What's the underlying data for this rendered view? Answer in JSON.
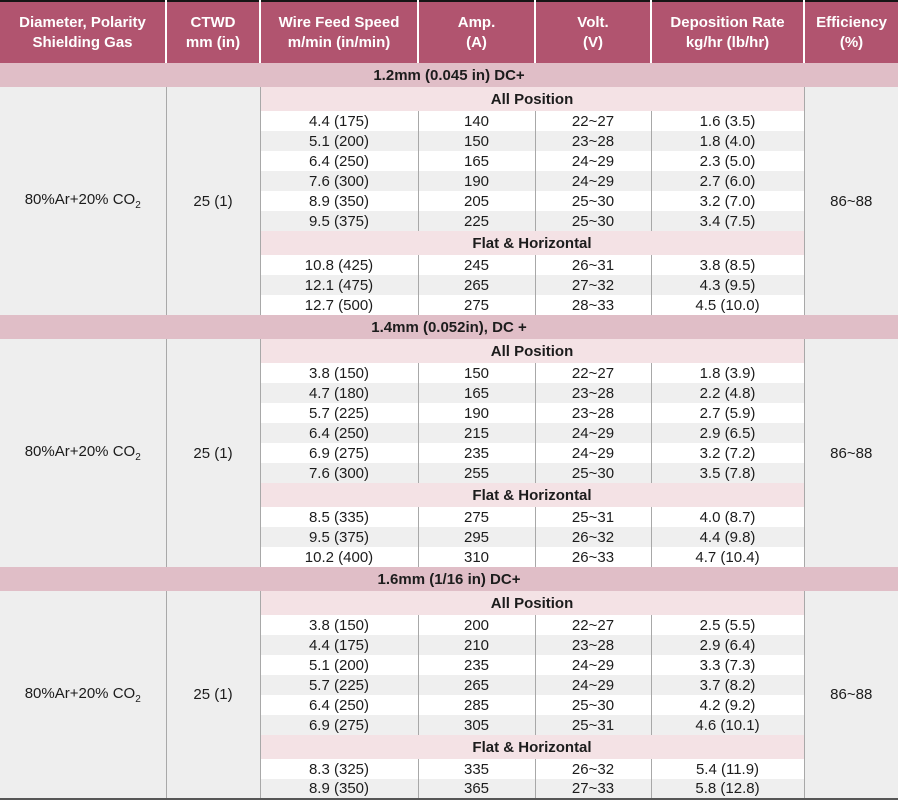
{
  "colors": {
    "header_bg": "#b1546f",
    "section_band": "#e0bec7",
    "group_band": "#f4e2e5",
    "row_stripe": "#efefef",
    "outer_column_bg": "#eeeeee",
    "grid_line": "#a8a8a8",
    "header_text": "#ffffff",
    "body_text": "#1c1c1c"
  },
  "table": {
    "headers": [
      {
        "line1": "Diameter, Polarity",
        "line2": "Shielding Gas"
      },
      {
        "line1": "CTWD",
        "line2": "mm (in)"
      },
      {
        "line1": "Wire Feed Speed",
        "line2": "m/min (in/min)"
      },
      {
        "line1": "Amp.",
        "line2": "(A)"
      },
      {
        "line1": "Volt.",
        "line2": "(V)"
      },
      {
        "line1": "Deposition Rate",
        "line2": "kg/hr (lb/hr)"
      },
      {
        "line1": "Efficiency",
        "line2": "(%)"
      }
    ],
    "sections": [
      {
        "title": "1.2mm (0.045 in) DC+",
        "shielding_gas": "80%Ar+20% CO",
        "shielding_gas_subscript": "2",
        "ctwd": "25 (1)",
        "efficiency": "86~88",
        "groups": [
          {
            "label": "All Position",
            "rows": [
              [
                "4.4 (175)",
                "140",
                "22~27",
                "1.6 (3.5)"
              ],
              [
                "5.1 (200)",
                "150",
                "23~28",
                "1.8 (4.0)"
              ],
              [
                "6.4 (250)",
                "165",
                "24~29",
                "2.3 (5.0)"
              ],
              [
                "7.6 (300)",
                "190",
                "24~29",
                "2.7 (6.0)"
              ],
              [
                "8.9 (350)",
                "205",
                "25~30",
                "3.2 (7.0)"
              ],
              [
                "9.5 (375)",
                "225",
                "25~30",
                "3.4 (7.5)"
              ]
            ]
          },
          {
            "label": "Flat & Horizontal",
            "rows": [
              [
                "10.8 (425)",
                "245",
                "26~31",
                "3.8 (8.5)"
              ],
              [
                "12.1 (475)",
                "265",
                "27~32",
                "4.3 (9.5)"
              ],
              [
                "12.7 (500)",
                "275",
                "28~33",
                "4.5 (10.0)"
              ]
            ]
          }
        ]
      },
      {
        "title": "1.4mm (0.052in), DC +",
        "shielding_gas": "80%Ar+20% CO",
        "shielding_gas_subscript": "2",
        "ctwd": "25 (1)",
        "efficiency": "86~88",
        "groups": [
          {
            "label": "All Position",
            "rows": [
              [
                "3.8 (150)",
                "150",
                "22~27",
                "1.8 (3.9)"
              ],
              [
                "4.7 (180)",
                "165",
                "23~28",
                "2.2 (4.8)"
              ],
              [
                "5.7 (225)",
                "190",
                "23~28",
                "2.7 (5.9)"
              ],
              [
                "6.4 (250)",
                "215",
                "24~29",
                "2.9 (6.5)"
              ],
              [
                "6.9 (275)",
                "235",
                "24~29",
                "3.2 (7.2)"
              ],
              [
                "7.6 (300)",
                "255",
                "25~30",
                "3.5 (7.8)"
              ]
            ]
          },
          {
            "label": "Flat & Horizontal",
            "rows": [
              [
                "8.5 (335)",
                "275",
                "25~31",
                "4.0 (8.7)"
              ],
              [
                "9.5 (375)",
                "295",
                "26~32",
                "4.4 (9.8)"
              ],
              [
                "10.2 (400)",
                "310",
                "26~33",
                "4.7 (10.4)"
              ]
            ]
          }
        ]
      },
      {
        "title": "1.6mm (1/16 in) DC+",
        "shielding_gas": "80%Ar+20% CO",
        "shielding_gas_subscript": "2",
        "ctwd": "25 (1)",
        "efficiency": "86~88",
        "groups": [
          {
            "label": "All Position",
            "rows": [
              [
                "3.8 (150)",
                "200",
                "22~27",
                "2.5 (5.5)"
              ],
              [
                "4.4 (175)",
                "210",
                "23~28",
                "2.9 (6.4)"
              ],
              [
                "5.1 (200)",
                "235",
                "24~29",
                "3.3 (7.3)"
              ],
              [
                "5.7 (225)",
                "265",
                "24~29",
                "3.7 (8.2)"
              ],
              [
                "6.4 (250)",
                "285",
                "25~30",
                "4.2 (9.2)"
              ],
              [
                "6.9 (275)",
                "305",
                "25~31",
                "4.6 (10.1)"
              ]
            ]
          },
          {
            "label": "Flat & Horizontal",
            "rows": [
              [
                "8.3 (325)",
                "335",
                "26~32",
                "5.4 (11.9)"
              ],
              [
                "8.9 (350)",
                "365",
                "27~33",
                "5.8 (12.8)"
              ]
            ]
          }
        ]
      }
    ]
  }
}
